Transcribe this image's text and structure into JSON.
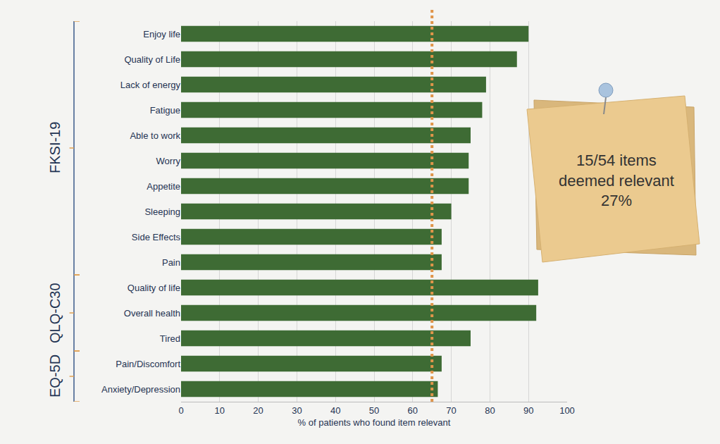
{
  "chart_data": {
    "type": "bar",
    "orientation": "horizontal",
    "categories": [
      "Enjoy life",
      "Quality of Life",
      "Lack of energy",
      "Fatigue",
      "Able to work",
      "Worry",
      "Appetite",
      "Sleeping",
      "Side Effects",
      "Pain",
      "Quality of life",
      "Overall health",
      "Tired",
      "Pain/Discomfort",
      "Anxiety/Depression"
    ],
    "values": [
      90,
      87,
      79,
      78,
      75,
      74.5,
      74.5,
      70,
      67.5,
      67.5,
      92.5,
      92,
      75,
      67.5,
      66.5
    ],
    "groups": [
      "FKSI-19",
      "FKSI-19",
      "FKSI-19",
      "FKSI-19",
      "FKSI-19",
      "FKSI-19",
      "FKSI-19",
      "FKSI-19",
      "FKSI-19",
      "FKSI-19",
      "QLQ-C30",
      "QLQ-C30",
      "QLQ-C30",
      "EQ-5D",
      "EQ-5D"
    ],
    "color": "#3e6b34",
    "x_label": "% of patients who found item relevant",
    "xlim": [
      0,
      100
    ],
    "xticks": [
      0,
      10,
      20,
      30,
      40,
      50,
      60,
      70,
      80,
      90,
      100
    ],
    "grid": true,
    "reference_line": 65,
    "annotation": [
      "15/54 items",
      "deemed relevant",
      "27%"
    ]
  }
}
